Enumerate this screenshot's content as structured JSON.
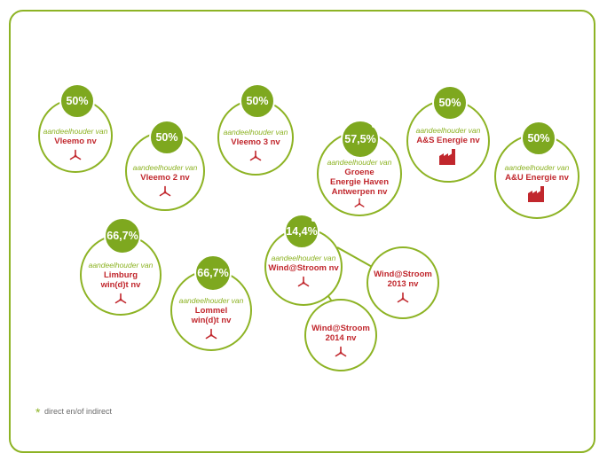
{
  "colors": {
    "green": "#8db324",
    "badge_green": "#7ea81f",
    "red": "#c1272d"
  },
  "participations": [
    {
      "id": "vleemo",
      "percent": "50%",
      "label": "aandeelhouder van",
      "name": [
        "Vleemo nv"
      ],
      "icon": "wind-turbine-icon",
      "asterisk": false
    },
    {
      "id": "vleemo-2",
      "percent": "50%",
      "label": "aandeelhouder van",
      "name": [
        "Vleemo 2 nv"
      ],
      "icon": "wind-turbine-icon",
      "asterisk": false
    },
    {
      "id": "vleemo-3",
      "percent": "50%",
      "label": "aandeelhouder van",
      "name": [
        "Vleemo 3 nv"
      ],
      "icon": "wind-turbine-icon",
      "asterisk": false
    },
    {
      "id": "groene-energie-haven",
      "percent": "57,5%",
      "label": "aandeelhouder van",
      "name": [
        "Groene",
        "Energie Haven",
        "Antwerpen nv"
      ],
      "icon": "wind-turbine-icon",
      "asterisk": true
    },
    {
      "id": "as-energie",
      "percent": "50%",
      "label": "aandeelhouder van",
      "name": [
        "A&S Energie nv"
      ],
      "icon": "factory-icon",
      "asterisk": false
    },
    {
      "id": "au-energie",
      "percent": "50%",
      "label": "aandeelhouder van",
      "name": [
        "A&U Energie nv"
      ],
      "icon": "factory-icon",
      "asterisk": false
    },
    {
      "id": "limburg-windt",
      "percent": "66,7%",
      "label": "aandeelhouder van",
      "name": [
        "Limburg",
        "win(d)t nv"
      ],
      "icon": "wind-turbine-icon",
      "asterisk": false
    },
    {
      "id": "lommel-windt",
      "percent": "66,7%",
      "label": "aandeelhouder van",
      "name": [
        "Lommel",
        "win(d)t nv"
      ],
      "icon": "wind-turbine-icon",
      "asterisk": false
    },
    {
      "id": "windstroom",
      "percent": "14,4%",
      "label": "aandeelhouder van",
      "name": [
        "Wind@Stroom nv"
      ],
      "icon": "wind-turbine-icon",
      "asterisk": true
    }
  ],
  "subsidiaries": [
    {
      "id": "windstroom-2013",
      "name": [
        "Wind@Stroom",
        "2013 nv"
      ],
      "icon": "wind-turbine-icon"
    },
    {
      "id": "windstroom-2014",
      "name": [
        "Wind@Stroom",
        "2014 nv"
      ],
      "icon": "wind-turbine-icon"
    }
  ],
  "legend": {
    "symbol": "*",
    "text": "direct en/of indirect"
  }
}
